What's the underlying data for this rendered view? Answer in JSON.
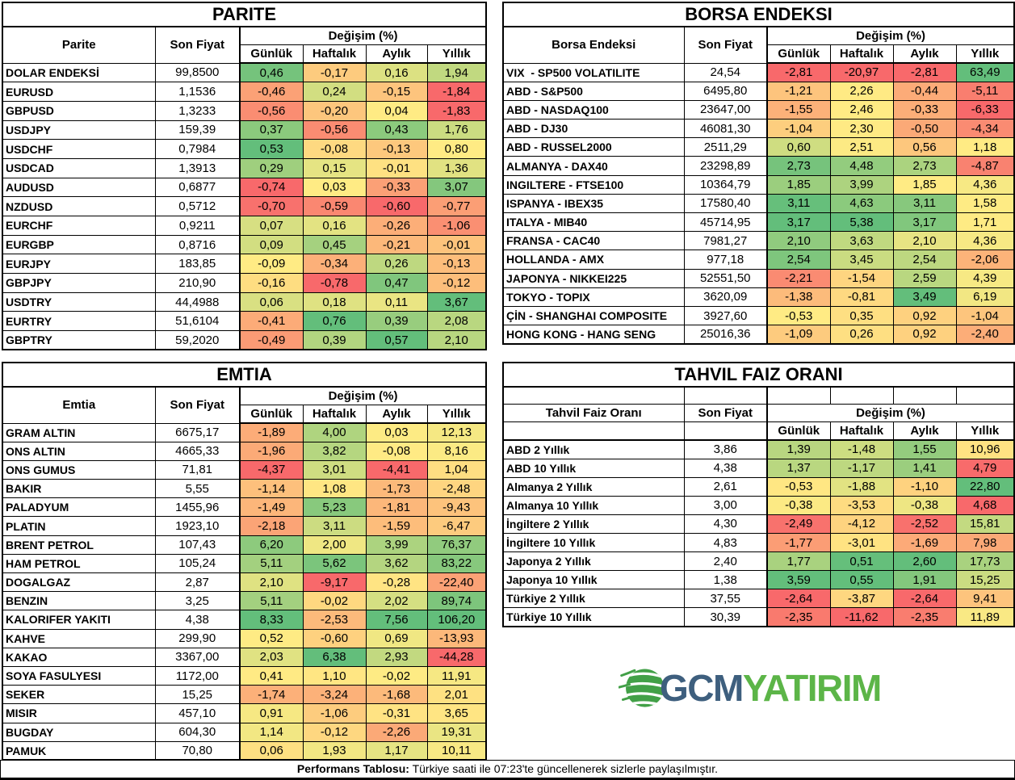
{
  "price_header": "Son Fiyat",
  "change_header": "Değişim (%)",
  "period_headers": [
    "Günlük",
    "Haftalık",
    "Aylık",
    "Yıllık"
  ],
  "color_scale": {
    "min": "#F8696B",
    "mid": "#FFEB84",
    "max": "#63BE7B"
  },
  "tables": {
    "parite": {
      "title": "PARITE",
      "label_header": "Parite",
      "rows": [
        {
          "name": "DOLAR ENDEKSİ",
          "price": "99,8500",
          "changes": [
            "0,46",
            "-0,17",
            "0,16",
            "1,94"
          ]
        },
        {
          "name": "EURUSD",
          "price": "1,1536",
          "changes": [
            "-0,46",
            "0,24",
            "-0,15",
            "-1,84"
          ]
        },
        {
          "name": "GBPUSD",
          "price": "1,3233",
          "changes": [
            "-0,56",
            "-0,20",
            "0,04",
            "-1,83"
          ]
        },
        {
          "name": "USDJPY",
          "price": "159,39",
          "changes": [
            "0,37",
            "-0,56",
            "0,43",
            "1,76"
          ]
        },
        {
          "name": "USDCHF",
          "price": "0,7984",
          "changes": [
            "0,53",
            "-0,08",
            "-0,13",
            "0,80"
          ]
        },
        {
          "name": "USDCAD",
          "price": "1,3913",
          "changes": [
            "0,29",
            "0,15",
            "-0,01",
            "1,36"
          ]
        },
        {
          "name": "AUDUSD",
          "price": "0,6877",
          "changes": [
            "-0,74",
            "0,03",
            "-0,33",
            "3,07"
          ]
        },
        {
          "name": "NZDUSD",
          "price": "0,5712",
          "changes": [
            "-0,70",
            "-0,59",
            "-0,60",
            "-0,77"
          ]
        },
        {
          "name": "EURCHF",
          "price": "0,9211",
          "changes": [
            "0,07",
            "0,16",
            "-0,26",
            "-1,06"
          ]
        },
        {
          "name": "EURGBP",
          "price": "0,8716",
          "changes": [
            "0,09",
            "0,45",
            "-0,21",
            "-0,01"
          ]
        },
        {
          "name": "EURJPY",
          "price": "183,85",
          "changes": [
            "-0,09",
            "-0,34",
            "0,26",
            "-0,13"
          ]
        },
        {
          "name": "GBPJPY",
          "price": "210,90",
          "changes": [
            "-0,16",
            "-0,78",
            "0,47",
            "-0,12"
          ]
        },
        {
          "name": "USDTRY",
          "price": "44,4988",
          "changes": [
            "0,06",
            "0,18",
            "0,11",
            "3,67"
          ]
        },
        {
          "name": "EURTRY",
          "price": "51,6104",
          "changes": [
            "-0,41",
            "0,76",
            "0,39",
            "2,08"
          ]
        },
        {
          "name": "GBPTRY",
          "price": "59,2020",
          "changes": [
            "-0,49",
            "0,39",
            "0,57",
            "2,10"
          ]
        }
      ]
    },
    "borsa": {
      "title": "BORSA ENDEKSI",
      "label_header": "Borsa Endeksi",
      "rows": [
        {
          "name": "VIX  - SP500 VOLATILITE",
          "price": "24,54",
          "changes": [
            "-2,81",
            "-20,97",
            "-2,81",
            "63,49"
          ]
        },
        {
          "name": "ABD - S&P500",
          "price": "6495,80",
          "changes": [
            "-1,21",
            "2,26",
            "-0,44",
            "-5,11"
          ]
        },
        {
          "name": "ABD - NASDAQ100",
          "price": "23647,00",
          "changes": [
            "-1,55",
            "2,46",
            "-0,33",
            "-6,33"
          ]
        },
        {
          "name": "ABD - DJ30",
          "price": "46081,30",
          "changes": [
            "-1,04",
            "2,30",
            "-0,50",
            "-4,34"
          ]
        },
        {
          "name": "ABD - RUSSEL2000",
          "price": "2511,29",
          "changes": [
            "0,60",
            "2,51",
            "0,56",
            "1,18"
          ]
        },
        {
          "name": "ALMANYA - DAX40",
          "price": "23298,89",
          "changes": [
            "2,73",
            "4,48",
            "2,73",
            "-4,87"
          ]
        },
        {
          "name": "INGILTERE - FTSE100",
          "price": "10364,79",
          "changes": [
            "1,85",
            "3,99",
            "1,85",
            "4,36"
          ]
        },
        {
          "name": "ISPANYA - IBEX35",
          "price": "17580,40",
          "changes": [
            "3,11",
            "4,63",
            "3,11",
            "1,58"
          ]
        },
        {
          "name": "ITALYA - MIB40",
          "price": "45714,95",
          "changes": [
            "3,17",
            "5,38",
            "3,17",
            "1,71"
          ]
        },
        {
          "name": "FRANSA - CAC40",
          "price": "7981,27",
          "changes": [
            "2,10",
            "3,63",
            "2,10",
            "4,36"
          ]
        },
        {
          "name": "HOLLANDA - AMX",
          "price": "977,18",
          "changes": [
            "2,54",
            "3,45",
            "2,54",
            "-2,06"
          ]
        },
        {
          "name": "JAPONYA - NIKKEI225",
          "price": "52551,50",
          "changes": [
            "-2,21",
            "-1,54",
            "2,59",
            "4,39"
          ]
        },
        {
          "name": "TOKYO - TOPIX",
          "price": "3620,09",
          "changes": [
            "-1,38",
            "-0,81",
            "3,49",
            "6,19"
          ]
        },
        {
          "name": "ÇİN - SHANGHAI COMPOSITE",
          "price": "3927,60",
          "changes": [
            "-0,53",
            "0,35",
            "0,92",
            "-1,04"
          ]
        },
        {
          "name": "HONG KONG - HANG SENG",
          "price": "25016,36",
          "changes": [
            "-1,09",
            "0,26",
            "0,92",
            "-2,40"
          ]
        }
      ]
    },
    "emtia": {
      "title": "EMTIA",
      "label_header": "Emtia",
      "rows": [
        {
          "name": "GRAM ALTIN",
          "price": "6675,17",
          "changes": [
            "-1,89",
            "4,00",
            "0,03",
            "12,13"
          ]
        },
        {
          "name": "ONS ALTIN",
          "price": "4665,33",
          "changes": [
            "-1,96",
            "3,82",
            "-0,08",
            "8,16"
          ]
        },
        {
          "name": "ONS GUMUS",
          "price": "71,81",
          "changes": [
            "-4,37",
            "3,01",
            "-4,41",
            "1,04"
          ]
        },
        {
          "name": "BAKIR",
          "price": "5,55",
          "changes": [
            "-1,14",
            "1,08",
            "-1,73",
            "-2,48"
          ]
        },
        {
          "name": "PALADYUM",
          "price": "1455,96",
          "changes": [
            "-1,49",
            "5,23",
            "-1,81",
            "-9,43"
          ]
        },
        {
          "name": "PLATIN",
          "price": "1923,10",
          "changes": [
            "-2,18",
            "3,11",
            "-1,59",
            "-6,47"
          ]
        },
        {
          "name": "BRENT PETROL",
          "price": "107,43",
          "changes": [
            "6,20",
            "2,00",
            "3,99",
            "76,37"
          ]
        },
        {
          "name": "HAM PETROL",
          "price": "105,24",
          "changes": [
            "5,11",
            "5,62",
            "3,62",
            "83,22"
          ]
        },
        {
          "name": "DOGALGAZ",
          "price": "2,87",
          "changes": [
            "2,10",
            "-9,17",
            "-0,28",
            "-22,40"
          ]
        },
        {
          "name": "BENZIN",
          "price": "3,25",
          "changes": [
            "5,11",
            "-0,02",
            "2,02",
            "89,74"
          ]
        },
        {
          "name": "KALORIFER YAKITI",
          "price": "4,38",
          "changes": [
            "8,33",
            "-2,53",
            "7,56",
            "106,20"
          ]
        },
        {
          "name": "KAHVE",
          "price": "299,90",
          "changes": [
            "0,52",
            "-0,60",
            "0,69",
            "-13,93"
          ]
        },
        {
          "name": "KAKAO",
          "price": "3367,00",
          "changes": [
            "2,03",
            "6,38",
            "2,93",
            "-44,28"
          ]
        },
        {
          "name": "SOYA FASULYESI",
          "price": "1172,00",
          "changes": [
            "0,41",
            "1,10",
            "-0,02",
            "11,91"
          ]
        },
        {
          "name": "SEKER",
          "price": "15,25",
          "changes": [
            "-1,74",
            "-3,24",
            "-1,68",
            "2,01"
          ]
        },
        {
          "name": "MISIR",
          "price": "457,10",
          "changes": [
            "0,91",
            "-1,06",
            "-0,31",
            "3,65"
          ]
        },
        {
          "name": "BUGDAY",
          "price": "604,30",
          "changes": [
            "1,14",
            "-0,12",
            "-2,26",
            "19,31"
          ]
        },
        {
          "name": "PAMUK",
          "price": "70,80",
          "changes": [
            "0,06",
            "1,93",
            "1,17",
            "10,11"
          ]
        }
      ]
    },
    "tahvil": {
      "title": "TAHVIL FAIZ ORANI",
      "label_header": "Tahvil Faiz Oranı",
      "rows": [
        {
          "name": "ABD 2 Yıllık",
          "price": "3,86",
          "changes": [
            "1,39",
            "-1,48",
            "1,55",
            "10,96"
          ]
        },
        {
          "name": "ABD 10 Yıllık",
          "price": "4,38",
          "changes": [
            "1,37",
            "-1,17",
            "1,41",
            "4,79"
          ]
        },
        {
          "name": "Almanya 2 Yıllık",
          "price": "2,61",
          "changes": [
            "-0,53",
            "-1,88",
            "-1,10",
            "22,80"
          ]
        },
        {
          "name": "Almanya 10 Yıllık",
          "price": "3,00",
          "changes": [
            "-0,38",
            "-3,53",
            "-0,38",
            "4,68"
          ]
        },
        {
          "name": "İngiltere 2 Yıllık",
          "price": "4,30",
          "changes": [
            "-2,49",
            "-4,12",
            "-2,52",
            "15,81"
          ]
        },
        {
          "name": "İngiltere 10 Yıllık",
          "price": "4,83",
          "changes": [
            "-1,77",
            "-3,01",
            "-1,69",
            "7,98"
          ]
        },
        {
          "name": "Japonya 2 Yıllık",
          "price": "2,40",
          "changes": [
            "1,77",
            "0,51",
            "2,60",
            "17,73"
          ]
        },
        {
          "name": "Japonya 10 Yıllık",
          "price": "1,38",
          "changes": [
            "3,59",
            "0,55",
            "1,91",
            "15,25"
          ]
        },
        {
          "name": "Türkiye 2 Yıllık",
          "price": "37,55",
          "changes": [
            "-2,64",
            "-3,87",
            "-2,64",
            "9,41"
          ]
        },
        {
          "name": "Türkiye 10 Yıllık",
          "price": "30,39",
          "changes": [
            "-2,35",
            "-11,62",
            "-2,35",
            "11,89"
          ]
        }
      ]
    }
  },
  "logo": {
    "gcm": "GCM",
    "yatirim": "YATIRIM",
    "gcm_color": "#3E5F7E",
    "yatirim_color": "#5CB548",
    "globe_color": "#42A047"
  },
  "footer": {
    "bold": "Performans Tablosu:",
    "text": "Türkiye saati ile 07:23'te güncellenerek sizlerle paylaşılmıştır."
  }
}
